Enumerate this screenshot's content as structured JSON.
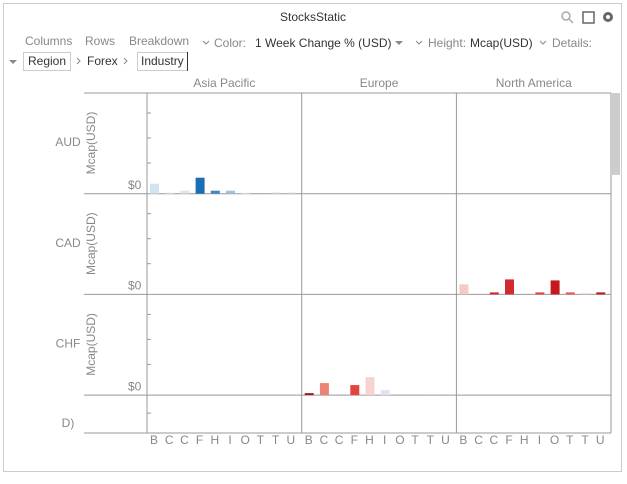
{
  "header": {
    "title": "StocksStatic"
  },
  "toolbar": {
    "columns": "Columns",
    "rows": "Rows",
    "breakdown": "Breakdown",
    "color_label": "Color:",
    "color_value": "1 Week Change % (USD)",
    "height_label": "Height:",
    "height_value": "Mcap(USD)",
    "details_label": "Details:"
  },
  "breadcrumb": [
    "Region",
    "Forex",
    "Industry"
  ],
  "chart_data": {
    "type": "bar",
    "columns": [
      "Asia Pacific",
      "Europe",
      "North America"
    ],
    "rows": [
      "AUD",
      "CAD",
      "CHF",
      "D)"
    ],
    "y_label": "Mcap(USD)",
    "zero_label": "$0",
    "categories": [
      "B",
      "C",
      "C",
      "F",
      "H",
      "I",
      "O",
      "T",
      "T",
      "U"
    ],
    "panels": [
      {
        "row": 0,
        "column": 0,
        "values": [
          10,
          1,
          3,
          16,
          3,
          3,
          1,
          0,
          1,
          1
        ],
        "colors": [
          "#d3e3ef",
          "#dce8f1",
          "#d8e6f0",
          "#1a6eb3",
          "#3e87c2",
          "#9fc1dd",
          "#e4edf4",
          "#e8eef3",
          "#c9dbea",
          "#c9dbea"
        ]
      },
      {
        "row": 1,
        "column": 2,
        "values": [
          10,
          0,
          2,
          15,
          0,
          2,
          14,
          2,
          1,
          2
        ],
        "colors": [
          "#f6c9c4",
          "#f4d6d3",
          "#d8232a",
          "#d22a2f",
          "#f4d6d3",
          "#e1433f",
          "#c41a1f",
          "#e55751",
          "#f2c3be",
          "#b71c1c"
        ]
      },
      {
        "row": 2,
        "column": 1,
        "values": [
          2,
          12,
          0,
          10,
          18,
          5,
          0,
          0,
          1,
          0
        ],
        "colors": [
          "#a51d1d",
          "#ee8176",
          "#f4d6d3",
          "#e0453f",
          "#f7d3cf",
          "#dde4ef",
          "#eeeeee",
          "#eeeeee",
          "#f2c3be",
          "#eeeeee"
        ]
      }
    ]
  }
}
